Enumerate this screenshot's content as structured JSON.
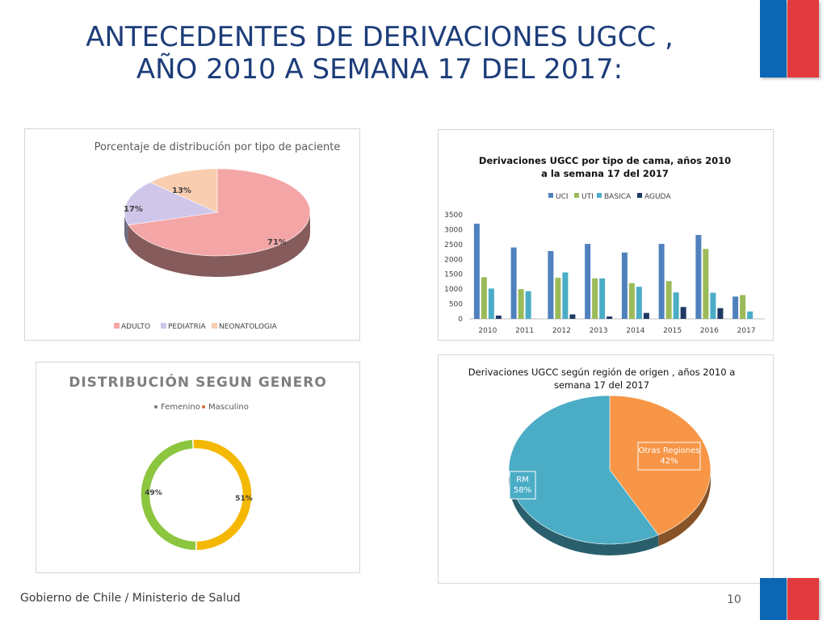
{
  "slide": {
    "title_line1": "ANTECEDENTES DE DERIVACIONES UGCC ,",
    "title_line2": "AÑO 2010 A SEMANA 17 DEL 2017:",
    "footer": "Gobierno de Chile / Ministerio de Salud",
    "page_number": "10",
    "colors": {
      "title": "#1d3d7a",
      "flag_blue": "#0b66b3",
      "flag_red": "#e23a3e"
    }
  },
  "chart_data": [
    {
      "type": "pie",
      "title": "Porcentaje de distribución por tipo de paciente",
      "labels": [
        "ADULTO",
        "PEDIATRIA",
        "NEONATOLOGIA"
      ],
      "values": [
        71,
        17,
        13
      ],
      "value_labels": [
        "71%",
        "17%",
        "13%"
      ],
      "colors": [
        "#f4a6a6",
        "#cfc6ea",
        "#f9cdb0"
      ],
      "legend": "bottom"
    },
    {
      "type": "bar",
      "title": "Derivaciones UGCC por tipo de cama, años 2010 a la semana 17 del 2017",
      "title_line1": "Derivaciones UGCC por tipo de cama, años 2010",
      "title_line2": "a la semana 17 del 2017",
      "categories": [
        "2010",
        "2011",
        "2012",
        "2013",
        "2014",
        "2015",
        "2016",
        "2017"
      ],
      "series": [
        {
          "name": "UCI",
          "color": "#4f81bd",
          "values": [
            3200,
            2400,
            2280,
            2520,
            2230,
            2520,
            2820,
            750
          ]
        },
        {
          "name": "UTI",
          "color": "#9bbb59",
          "values": [
            1400,
            1000,
            1380,
            1360,
            1200,
            1270,
            2350,
            800
          ]
        },
        {
          "name": "BASICA",
          "color": "#4bacc6",
          "values": [
            1020,
            930,
            1560,
            1360,
            1080,
            890,
            880,
            250
          ]
        },
        {
          "name": "AGUDA",
          "color": "#1f3864",
          "values": [
            110,
            0,
            150,
            80,
            200,
            400,
            360,
            0
          ]
        }
      ],
      "ylim": [
        0,
        3500
      ],
      "yticks": [
        "3500",
        "3000",
        "2500",
        "2000",
        "1500",
        "1000",
        "500",
        "0"
      ],
      "grid": false,
      "legend": "top"
    },
    {
      "type": "pie",
      "title": "DISTRIBUCIÓN SEGUN GENERO",
      "labels": [
        "Femenino",
        "Masculino"
      ],
      "values": [
        49,
        51
      ],
      "value_labels": [
        "49%",
        "51%"
      ],
      "colors": [
        "#8cc63f",
        "#f5b800"
      ],
      "legend_colors": [
        "#777777",
        "#d46a3a"
      ],
      "legend": "top"
    },
    {
      "type": "pie",
      "title_line1": "Derivaciones UGCC según región de origen , años 2010 a",
      "title_line2": "semana 17 del 2017",
      "labels": [
        "RM",
        "Otras Regiones"
      ],
      "values": [
        58,
        42
      ],
      "value_labels": [
        "58%",
        "42%"
      ],
      "colors": [
        "#4bacc6",
        "#f79646"
      ],
      "legend": "none"
    }
  ]
}
